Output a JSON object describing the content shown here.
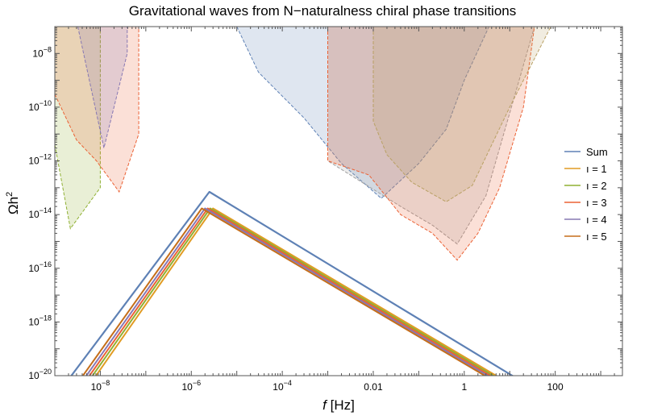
{
  "chart_data": {
    "type": "line",
    "title": "Gravitational waves from N−naturalness chiral phase transitions",
    "xlabel": "f",
    "xunit": " [Hz]",
    "ylabel": "Ωh",
    "ylabel_sup": "2",
    "x_scale": "log",
    "y_scale": "log",
    "xlim": [
      1e-09,
      3000
    ],
    "ylim": [
      1e-20,
      1e-07
    ],
    "grid": false,
    "legend_position": "right",
    "x_ticks": [
      {
        "value": 1e-08,
        "base": "10",
        "exp": "−8"
      },
      {
        "value": 1e-06,
        "base": "10",
        "exp": "−6"
      },
      {
        "value": 0.0001,
        "base": "10",
        "exp": "−4"
      },
      {
        "value": 0.01,
        "base": "0.01",
        "exp": ""
      },
      {
        "value": 1,
        "base": "1",
        "exp": ""
      },
      {
        "value": 100,
        "base": "100",
        "exp": ""
      }
    ],
    "y_ticks": [
      {
        "value": 1e-20,
        "base": "10",
        "exp": "−20"
      },
      {
        "value": 1e-18,
        "base": "10",
        "exp": "−18"
      },
      {
        "value": 1e-16,
        "base": "10",
        "exp": "−16"
      },
      {
        "value": 1e-14,
        "base": "10",
        "exp": "−14"
      },
      {
        "value": 1e-12,
        "base": "10",
        "exp": "−12"
      },
      {
        "value": 1e-10,
        "base": "10",
        "exp": "−10"
      },
      {
        "value": 1e-08,
        "base": "10",
        "exp": "−8"
      }
    ],
    "series": [
      {
        "name": "Sum",
        "color": "#5e81b5",
        "x": [
          3e-10,
          2.5e-06,
          1000
        ],
        "y": [
          1e-22,
          7e-14,
          1e-22
        ]
      },
      {
        "name": "ı = 1",
        "color": "#e19c24",
        "x": [
          1.2e-09,
          3e-06,
          500
        ],
        "y": [
          1e-22,
          1.7e-14,
          1e-22
        ]
      },
      {
        "name": "ı = 2",
        "color": "#8fb032",
        "x": [
          1e-09,
          2.6e-06,
          430
        ],
        "y": [
          1e-22,
          1.7e-14,
          1e-22
        ]
      },
      {
        "name": "ı = 3",
        "color": "#eb6235",
        "x": [
          8.5e-10,
          2.3e-06,
          370
        ],
        "y": [
          1e-22,
          1.7e-14,
          1e-22
        ]
      },
      {
        "name": "ı = 4",
        "color": "#8778b3",
        "x": [
          7.2e-10,
          2e-06,
          320
        ],
        "y": [
          1e-22,
          1.7e-14,
          1e-22
        ]
      },
      {
        "name": "ı = 5",
        "color": "#c56e1a",
        "x": [
          6e-10,
          1.7e-06,
          280
        ],
        "y": [
          1e-22,
          1.7e-14,
          1e-22
        ]
      }
    ],
    "sensitivity_regions": [
      {
        "color": "#8fb032",
        "x": [
          1e-09,
          2.2e-09,
          1e-08,
          1e-08,
          1e-09
        ],
        "y": [
          4e-12,
          3e-15,
          1e-13,
          1e-07,
          1e-07
        ]
      },
      {
        "color": "#eb6235",
        "x": [
          1e-09,
          3e-09,
          8.2e-09,
          2.6e-08,
          7e-08,
          7e-08,
          1e-09
        ],
        "y": [
          3e-10,
          6e-12,
          1e-12,
          7e-14,
          1e-11,
          1e-07,
          1e-07
        ]
      },
      {
        "color": "#8778b3",
        "x": [
          3.2e-09,
          1.2e-08,
          3.9e-08,
          3.9e-08,
          3.2e-09
        ],
        "y": [
          1e-07,
          3e-12,
          1e-08,
          1e-07,
          1e-07
        ]
      },
      {
        "color": "#5e81b5",
        "x": [
          1e-05,
          3e-05,
          0.0003,
          0.002,
          0.015,
          0.1,
          0.4,
          1,
          3.5,
          3.5,
          1e-05
        ],
        "y": [
          1e-07,
          2e-09,
          4e-11,
          8e-13,
          4e-14,
          8e-13,
          1.5e-11,
          1e-09,
          1e-07,
          1e-07,
          1e-07
        ]
      },
      {
        "color": "#a0a0a0",
        "x": [
          0.001,
          0.001,
          0.04,
          0.2,
          0.7,
          3,
          10,
          35,
          35
        ],
        "y": [
          1e-07,
          1e-12,
          2e-14,
          4e-15,
          8e-16,
          5e-14,
          6e-11,
          1e-07,
          1e-07
        ]
      },
      {
        "color": "#eb6235",
        "x": [
          0.001,
          0.001,
          0.008,
          0.04,
          0.2,
          0.7,
          2,
          6,
          20,
          35,
          35
        ],
        "y": [
          1e-07,
          1e-12,
          3e-13,
          1e-14,
          2e-15,
          2e-16,
          2e-15,
          1e-13,
          1e-10,
          1e-07,
          1e-07
        ]
      },
      {
        "color": "#b9a064",
        "x": [
          0.01,
          0.01,
          0.02,
          0.07,
          0.4,
          1.5,
          10,
          80,
          80
        ],
        "y": [
          1e-07,
          3e-11,
          1.7e-12,
          1.6e-13,
          3e-14,
          1.2e-13,
          1e-10,
          1e-07,
          1e-07
        ]
      }
    ]
  }
}
